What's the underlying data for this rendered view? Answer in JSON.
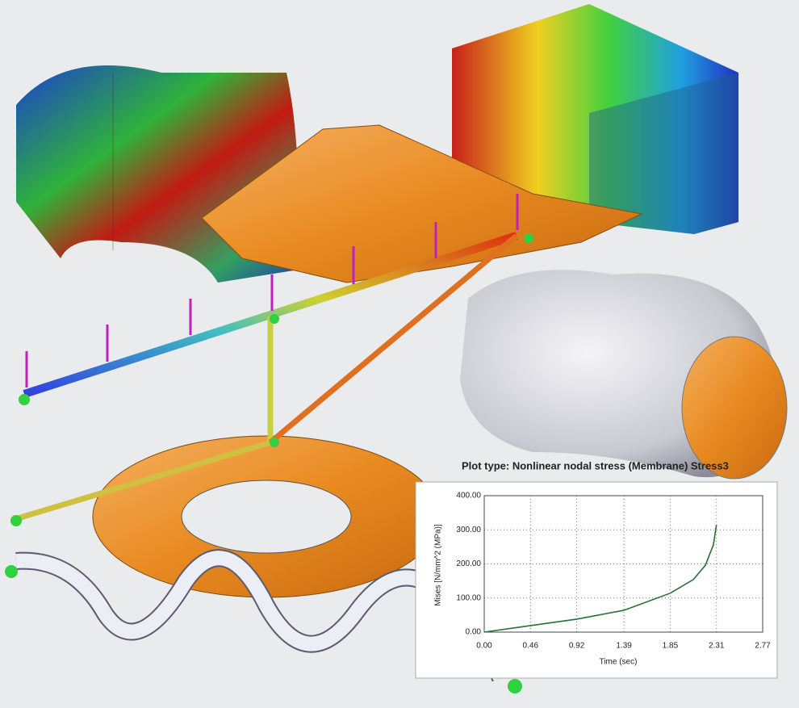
{
  "chart_data": {
    "type": "line",
    "title": "Plot type: Nonlinear nodal stress (Membrane) Stress3",
    "xlabel": "Time (sec)",
    "ylabel": "Mises [N/mm^2 (MPa)]",
    "x": [
      0,
      0.46,
      0.92,
      1.39,
      1.85,
      2.08,
      2.2,
      2.28,
      2.31
    ],
    "values": [
      0,
      19,
      38,
      64,
      114,
      154,
      196,
      256,
      315
    ],
    "color": "#2a6f3a",
    "xlim": [
      0,
      2.77
    ],
    "ylim": [
      0,
      400
    ],
    "xticks": [
      {
        "value": 0,
        "label": "0.00"
      },
      0.46,
      0.92,
      1.39,
      1.85,
      2.31,
      2.77
    ],
    "yticks": [
      {
        "value": 0,
        "label": "0.00"
      },
      {
        "value": 100,
        "label": "100.00"
      },
      {
        "value": 200,
        "label": "200.00"
      },
      {
        "value": 300,
        "label": "300.00"
      },
      {
        "value": 400,
        "label": "400.00"
      }
    ],
    "grid": true
  }
}
